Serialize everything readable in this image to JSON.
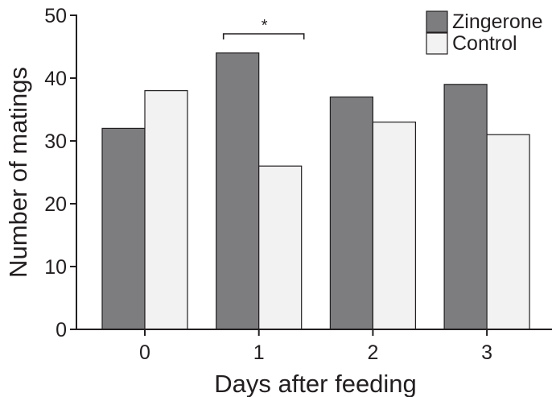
{
  "chart_data": {
    "type": "bar",
    "categories": [
      "0",
      "1",
      "2",
      "3"
    ],
    "series": [
      {
        "name": "Zingerone",
        "values": [
          32,
          44,
          37,
          39
        ],
        "color": "#7d7d80"
      },
      {
        "name": "Control",
        "values": [
          38,
          26,
          33,
          31
        ],
        "color": "#f2f2f2"
      }
    ],
    "title": "",
    "xlabel": "Days after feeding",
    "ylabel": "Number of matings",
    "ylim": [
      0,
      50
    ],
    "yticks": [
      "0",
      "10",
      "20",
      "30",
      "40",
      "50"
    ],
    "grid": false,
    "legend_position": "top-right",
    "annotations": [
      {
        "text": "*",
        "category": "1",
        "type": "significance-bracket"
      }
    ]
  }
}
